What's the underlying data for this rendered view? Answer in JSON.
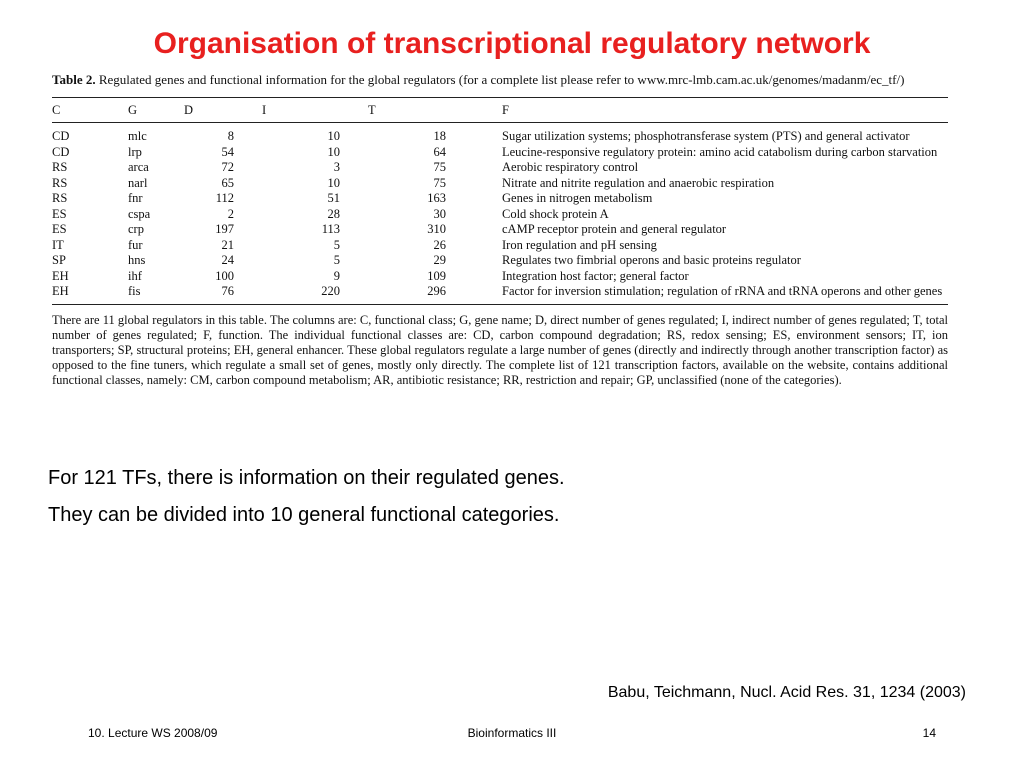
{
  "slide": {
    "title": "Organisation of transcriptional regulatory network"
  },
  "table": {
    "caption_label": "Table 2.",
    "caption_text": " Regulated genes and functional information for the global regulators (for a complete list please refer to www.mrc-lmb.cam.ac.uk/genomes/madanm/ec_tf/)",
    "headers": [
      "C",
      "G",
      "D",
      "I",
      "T",
      "F"
    ],
    "rows": [
      {
        "c": "CD",
        "g": "mlc",
        "d": "8",
        "i": "10",
        "t": "18",
        "f": "Sugar utilization systems; phosphotransferase system (PTS) and general activator"
      },
      {
        "c": "CD",
        "g": "lrp",
        "d": "54",
        "i": "10",
        "t": "64",
        "f": "Leucine-responsive regulatory protein: amino acid catabolism during carbon starvation"
      },
      {
        "c": "RS",
        "g": "arca",
        "d": "72",
        "i": "3",
        "t": "75",
        "f": "Aerobic respiratory control"
      },
      {
        "c": "RS",
        "g": "narl",
        "d": "65",
        "i": "10",
        "t": "75",
        "f": "Nitrate and nitrite regulation and anaerobic respiration"
      },
      {
        "c": "RS",
        "g": "fnr",
        "d": "112",
        "i": "51",
        "t": "163",
        "f": "Genes in nitrogen metabolism"
      },
      {
        "c": "ES",
        "g": "cspa",
        "d": "2",
        "i": "28",
        "t": "30",
        "f": "Cold shock protein A"
      },
      {
        "c": "ES",
        "g": "crp",
        "d": "197",
        "i": "113",
        "t": "310",
        "f": "cAMP receptor protein and general regulator"
      },
      {
        "c": "IT",
        "g": "fur",
        "d": "21",
        "i": "5",
        "t": "26",
        "f": "Iron regulation and pH sensing"
      },
      {
        "c": "SP",
        "g": "hns",
        "d": "24",
        "i": "5",
        "t": "29",
        "f": "Regulates two fimbrial operons and basic proteins regulator"
      },
      {
        "c": "EH",
        "g": "ihf",
        "d": "100",
        "i": "9",
        "t": "109",
        "f": "Integration host factor; general factor"
      },
      {
        "c": "EH",
        "g": "fis",
        "d": "76",
        "i": "220",
        "t": "296",
        "f": "Factor for inversion stimulation; regulation of rRNA and tRNA operons and other genes"
      }
    ],
    "footnote": "There are 11 global regulators in this table. The columns are: C, functional class; G, gene name; D, direct number of genes regulated; I, indirect number of genes regulated; T, total number of genes regulated; F, function. The individual functional classes are: CD, carbon compound degradation; RS, redox sensing; ES, environment sensors; IT, ion transporters; SP, structural proteins; EH, general enhancer. These global regulators regulate a large number of genes (directly and indirectly through another transcription factor) as opposed to the fine tuners, which regulate a small set of genes, mostly only directly. The complete list of 121 transcription factors, available on the website, contains additional functional classes, namely: CM, carbon compound metabolism; AR, antibiotic resistance; RR, restriction and repair; GP, unclassified (none of the categories)."
  },
  "body": {
    "line1": "For 121 TFs, there is information on their regulated genes.",
    "line2": "They can be divided into 10 general functional categories."
  },
  "citation": "Babu, Teichmann, Nucl. Acid Res. 31, 1234 (2003)",
  "footer": {
    "left": "10. Lecture WS 2008/09",
    "center": "Bioinformatics III",
    "right": "14"
  }
}
